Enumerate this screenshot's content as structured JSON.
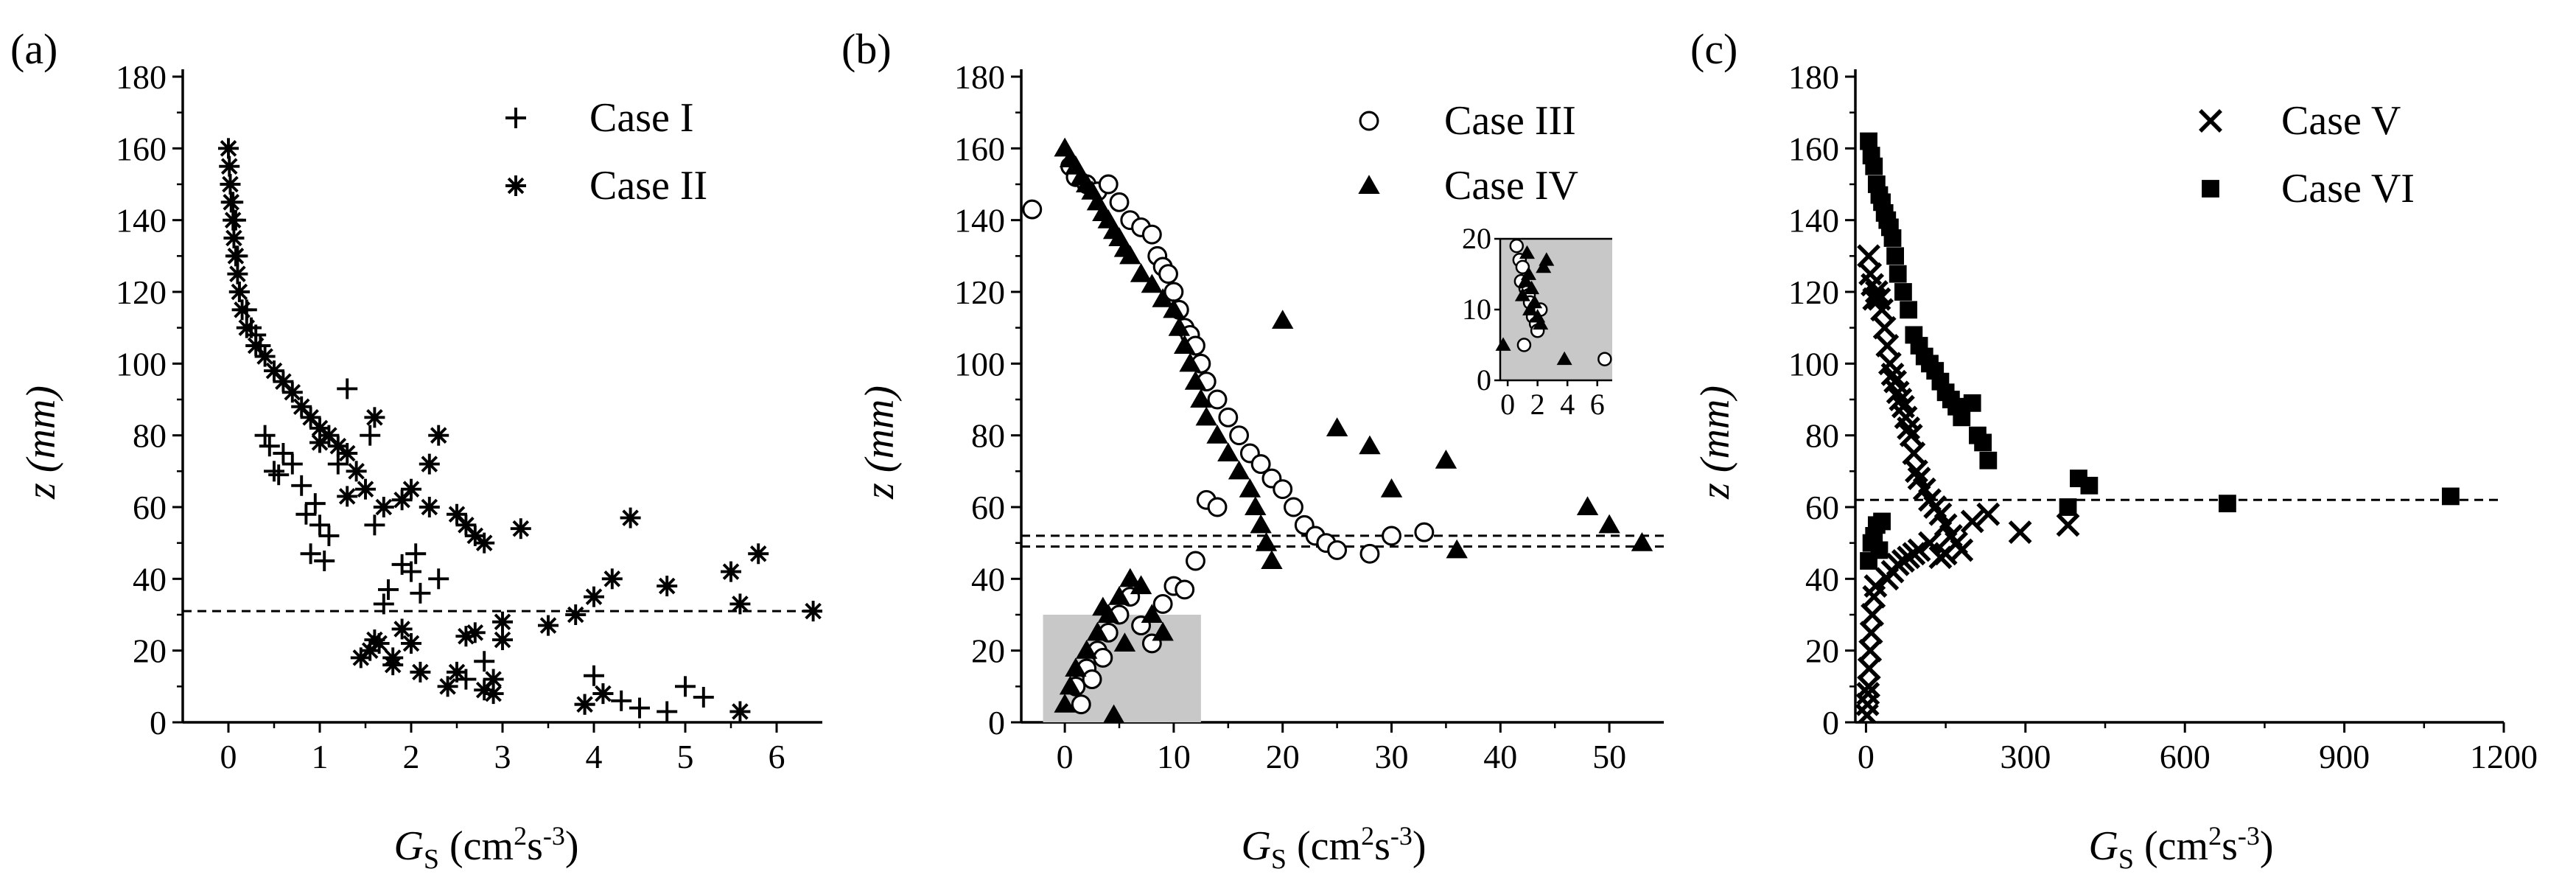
{
  "chart_data": [
    {
      "panel": "(a)",
      "type": "scatter",
      "xlabel": "G_S (cm^2s^-3)",
      "ylabel": "z (mm)",
      "xlim": [
        -0.5,
        6.5
      ],
      "ylim": [
        0,
        180
      ],
      "xticks": [
        "0",
        "1",
        "2",
        "3",
        "4",
        "5",
        "6"
      ],
      "yticks": [
        "0",
        "20",
        "40",
        "60",
        "80",
        "100",
        "120",
        "140",
        "160",
        "180"
      ],
      "legend_position": "top-right",
      "reference_line_y": 31,
      "series": [
        {
          "name": "Case I",
          "marker": "plus",
          "x": [
            0.02,
            0.05,
            0.08,
            0.1,
            0.12,
            0.2,
            0.25,
            0.3,
            0.35,
            0.4,
            0.45,
            0.5,
            0.55,
            0.6,
            0.7,
            0.8,
            0.85,
            0.9,
            0.95,
            1.0,
            1.05,
            1.1,
            1.2,
            1.3,
            1.55,
            1.6,
            1.7,
            1.75,
            1.9,
            2.0,
            2.05,
            2.1,
            2.3,
            2.6,
            2.8,
            3.9,
            4.0,
            4.1,
            4.3,
            4.5,
            4.8,
            5.0,
            5.2
          ],
          "y": [
            150,
            145,
            140,
            130,
            120,
            115,
            110,
            108,
            105,
            80,
            77,
            70,
            69,
            75,
            72,
            66,
            58,
            47,
            61,
            55,
            45,
            52,
            72,
            93,
            80,
            55,
            33,
            37,
            44,
            42,
            47,
            36,
            40,
            12,
            17,
            5,
            13,
            8,
            6,
            4,
            3,
            10,
            7
          ]
        },
        {
          "name": "Case II",
          "marker": "asterisk",
          "x": [
            0.0,
            0.01,
            0.02,
            0.03,
            0.05,
            0.06,
            0.08,
            0.1,
            0.12,
            0.15,
            0.2,
            0.3,
            0.4,
            0.5,
            0.6,
            0.7,
            0.8,
            0.9,
            1.0,
            1.1,
            1.2,
            1.3,
            1.4,
            1.5,
            1.6,
            1.7,
            1.8,
            1.9,
            2.0,
            2.1,
            2.2,
            2.3,
            2.4,
            2.5,
            2.6,
            2.7,
            2.8,
            2.9,
            3.0,
            3.2,
            3.5,
            3.8,
            3.9,
            4.0,
            4.2,
            4.4,
            4.8,
            5.5,
            5.6,
            5.8,
            6.4
          ],
          "y": [
            160,
            155,
            150,
            145,
            140,
            135,
            130,
            125,
            120,
            115,
            110,
            105,
            102,
            98,
            95,
            92,
            88,
            85,
            82,
            80,
            77,
            75,
            70,
            65,
            85,
            60,
            18,
            62,
            22,
            14,
            72,
            80,
            10,
            58,
            55,
            25,
            50,
            12,
            23,
            54,
            27,
            30,
            5,
            35,
            40,
            57,
            38,
            42,
            33,
            47,
            31
          ]
        },
        {
          "name": "",
          "marker": "asterisk",
          "x": [
            1.0,
            1.3,
            1.45,
            1.55,
            1.6,
            1.65,
            1.8,
            1.9,
            2.0,
            2.2,
            2.5,
            2.6,
            2.7,
            2.8,
            2.9,
            3.0,
            4.1,
            5.6
          ],
          "y": [
            78,
            63,
            18,
            20,
            23,
            22,
            16,
            26,
            65,
            60,
            14,
            24,
            52,
            9,
            8,
            28,
            8,
            3
          ]
        }
      ]
    },
    {
      "panel": "(b)",
      "type": "scatter",
      "xlabel": "G_S (cm^2s^-3)",
      "ylabel": "z (mm)",
      "xlim": [
        -4,
        55
      ],
      "ylim": [
        0,
        180
      ],
      "xticks": [
        "0",
        "10",
        "20",
        "30",
        "40",
        "50"
      ],
      "yticks": [
        "0",
        "20",
        "40",
        "60",
        "80",
        "100",
        "120",
        "140",
        "160",
        "180"
      ],
      "legend_position": "top-right",
      "reference_lines_y": [
        49,
        52
      ],
      "shaded_region": {
        "x": [
          -2,
          12.5
        ],
        "y": [
          0,
          30
        ]
      },
      "series": [
        {
          "name": "Case III",
          "marker": "open-circle",
          "x": [
            -3,
            0.5,
            1,
            2,
            3,
            4,
            5,
            6,
            7,
            8,
            8.5,
            9,
            9.5,
            10,
            10.5,
            11,
            11.5,
            12,
            12.5,
            13,
            14,
            15,
            16,
            17,
            18,
            19,
            20,
            21,
            22,
            23,
            24,
            25,
            28,
            30,
            33,
            1,
            2,
            3,
            4,
            5,
            6,
            7,
            8,
            9,
            10,
            11,
            12,
            13,
            14,
            1.5,
            2.5,
            3.5
          ],
          "y": [
            143,
            155,
            152,
            150,
            148,
            150,
            145,
            140,
            138,
            136,
            130,
            127,
            125,
            120,
            115,
            110,
            108,
            105,
            100,
            95,
            90,
            85,
            80,
            75,
            72,
            68,
            65,
            60,
            55,
            52,
            50,
            48,
            47,
            52,
            53,
            10,
            15,
            20,
            25,
            30,
            35,
            27,
            22,
            33,
            38,
            37,
            45,
            62,
            60,
            5,
            12,
            18
          ]
        },
        {
          "name": "Case IV",
          "marker": "filled-triangle",
          "x": [
            0,
            0.5,
            1,
            1.5,
            2,
            2.5,
            3,
            3.5,
            4,
            4.5,
            5,
            5.5,
            6,
            7,
            8,
            9,
            10,
            10.5,
            11,
            11.5,
            12,
            12.5,
            13,
            14,
            15,
            16,
            17,
            17.5,
            18,
            18.5,
            19,
            20,
            25,
            28,
            30,
            35,
            36,
            48,
            50,
            53,
            0,
            0.5,
            1,
            2,
            3,
            4,
            5,
            6,
            7,
            8,
            9,
            3.5,
            4.5,
            5.5
          ],
          "y": [
            160,
            157,
            155,
            152,
            150,
            148,
            145,
            142,
            140,
            137,
            135,
            132,
            130,
            125,
            122,
            118,
            115,
            110,
            105,
            100,
            95,
            90,
            85,
            80,
            75,
            70,
            65,
            60,
            55,
            50,
            45,
            112,
            82,
            77,
            65,
            73,
            48,
            60,
            55,
            50,
            5,
            10,
            15,
            20,
            25,
            30,
            35,
            40,
            38,
            30,
            25,
            32,
            2,
            22
          ]
        }
      ],
      "inset": {
        "xlim": [
          -0.5,
          7
        ],
        "ylim": [
          0,
          20
        ],
        "xticks": [
          "0",
          "2",
          "4",
          "6"
        ],
        "yticks": [
          "0",
          "10",
          "20"
        ],
        "shaded_region": {
          "x": [
            -0.5,
            7
          ],
          "y": [
            0,
            20
          ]
        },
        "series": [
          {
            "name": "Case III",
            "marker": "open-circle",
            "x": [
              0.6,
              0.8,
              1.0,
              1.2,
              1.4,
              1.5,
              1.7,
              1.9,
              2.0,
              2.2,
              6.5,
              0.9,
              1.1
            ],
            "y": [
              19,
              17,
              16,
              13,
              12,
              11,
              9,
              8,
              7,
              10,
              3,
              14,
              5
            ]
          },
          {
            "name": "Case IV",
            "marker": "filled-triangle",
            "x": [
              -0.3,
              1.0,
              1.2,
              1.4,
              1.6,
              1.8,
              2.0,
              2.2,
              2.4,
              2.6,
              3.8,
              1.5,
              1.3
            ],
            "y": [
              5,
              12,
              14,
              15,
              13,
              11,
              9,
              8,
              16,
              17,
              3,
              10,
              18
            ]
          }
        ]
      }
    },
    {
      "panel": "(c)",
      "type": "scatter",
      "xlabel": "G_S (cm^2s^-3)",
      "ylabel": "z (mm)",
      "xlim": [
        -20,
        1200
      ],
      "ylim": [
        0,
        180
      ],
      "xticks": [
        "0",
        "300",
        "600",
        "900",
        "1200"
      ],
      "yticks": [
        "0",
        "20",
        "40",
        "60",
        "80",
        "100",
        "120",
        "140",
        "160",
        "180"
      ],
      "legend_position": "top-right",
      "reference_line_y": 62,
      "series": [
        {
          "name": "Case V",
          "marker": "x-cross",
          "x": [
            2,
            3,
            4,
            5,
            6,
            8,
            10,
            12,
            15,
            18,
            20,
            25,
            30,
            35,
            40,
            45,
            50,
            55,
            60,
            65,
            70,
            75,
            80,
            85,
            90,
            95,
            100,
            110,
            120,
            130,
            140,
            150,
            160,
            170,
            180,
            200,
            230,
            290,
            380,
            40,
            50,
            60,
            70,
            80,
            90,
            100,
            120,
            140,
            150,
            5,
            8,
            12,
            15
          ],
          "y": [
            2,
            5,
            8,
            10,
            15,
            20,
            25,
            30,
            35,
            38,
            120,
            118,
            115,
            110,
            105,
            100,
            97,
            95,
            92,
            90,
            88,
            85,
            82,
            80,
            75,
            70,
            68,
            65,
            62,
            60,
            58,
            55,
            52,
            50,
            48,
            56,
            58,
            53,
            55,
            40,
            42,
            44,
            45,
            46,
            47,
            48,
            50,
            46,
            47,
            130,
            125,
            122,
            118
          ]
        },
        {
          "name": "Case VI",
          "marker": "filled-square",
          "x": [
            5,
            10,
            15,
            20,
            25,
            30,
            35,
            40,
            45,
            50,
            55,
            60,
            70,
            80,
            90,
            100,
            110,
            120,
            130,
            140,
            150,
            160,
            170,
            180,
            200,
            210,
            220,
            230,
            380,
            400,
            420,
            680,
            1100,
            5,
            10,
            15,
            20,
            25,
            30
          ],
          "y": [
            162,
            158,
            155,
            150,
            147,
            145,
            142,
            140,
            138,
            135,
            130,
            125,
            120,
            115,
            108,
            105,
            102,
            100,
            98,
            95,
            92,
            90,
            88,
            85,
            89,
            80,
            78,
            73,
            60,
            68,
            66,
            61,
            63,
            45,
            50,
            52,
            55,
            48,
            56
          ]
        }
      ]
    }
  ]
}
